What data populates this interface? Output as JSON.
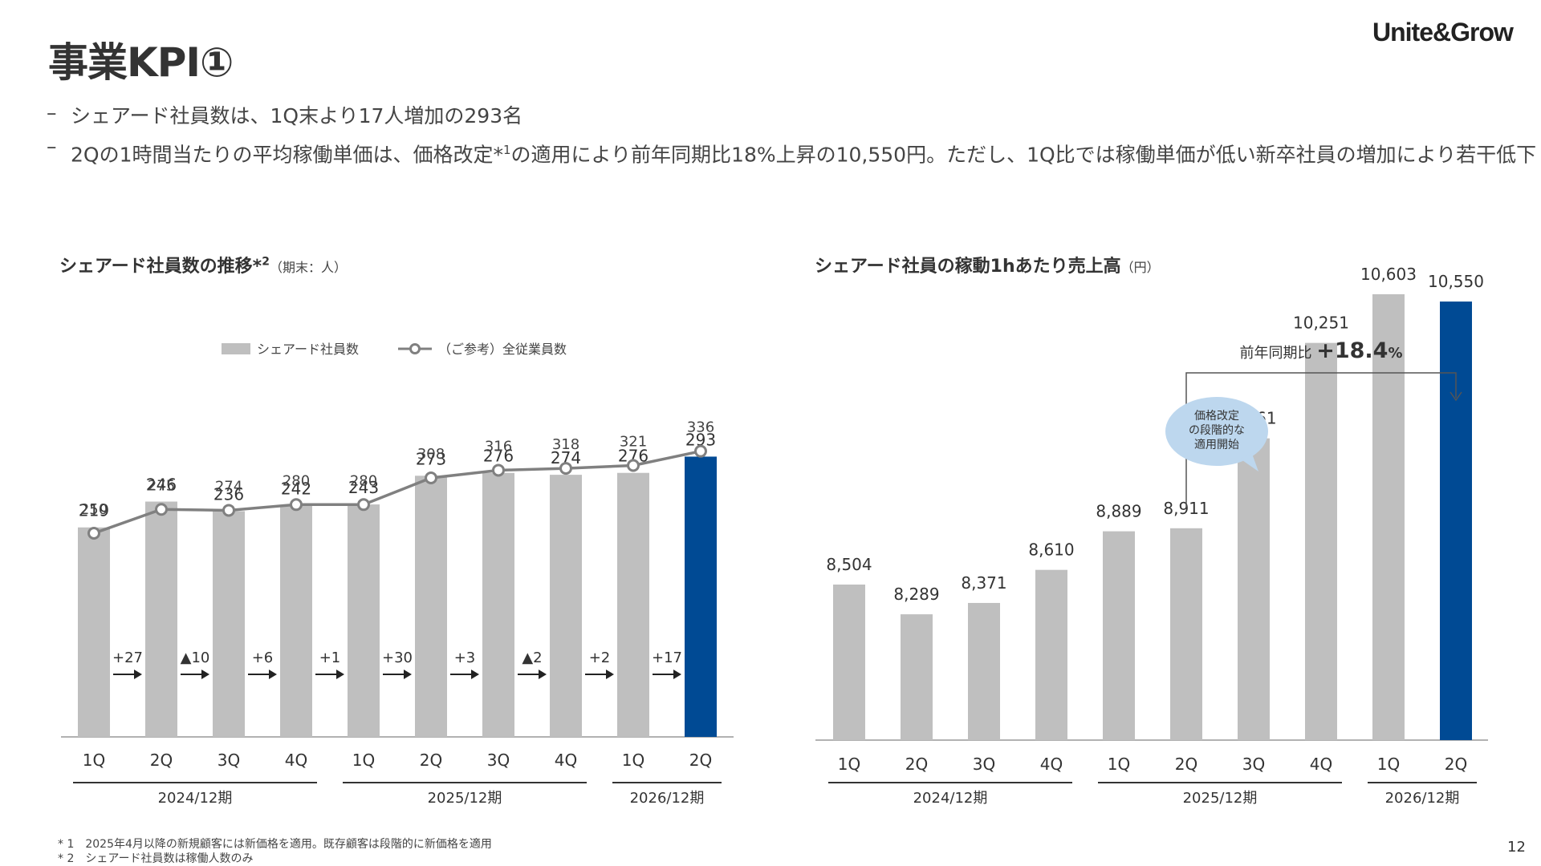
{
  "title": "事業KPI①",
  "logo": "Unite&Grow",
  "bullets": [
    {
      "dash": "–",
      "text_a": "シェアード社員数は、1Q末より17人増加の293名",
      "sup": "",
      "text_b": ""
    },
    {
      "dash": "–",
      "text_a": "2Qの1時間当たりの平均稼働単価は、価格改定*",
      "sup": "1",
      "text_b": "の適用により前年同期比18%上昇の10,550円。ただし、1Q比では稼働単価が低い新卒社員の増加により若干低下"
    }
  ],
  "chart_left": {
    "title": "シェアード社員数の推移*",
    "title_sup": "2",
    "title_sub": "（期末：人）"
  },
  "chart_right": {
    "title": "シェアード社員の稼動1hあたり売上高",
    "title_sub": "（円）"
  },
  "footnotes": [
    "* 1　2025年4月以降の新規顧客には新価格を適用。既存顧客は段階的に新価格を適用",
    "* 2　シェアード社員数は稼働人数のみ"
  ],
  "page_number": "12",
  "colors": {
    "bar_gray": "#BFBFBF",
    "bar_highlight": "#004A94",
    "line_gray": "#808080",
    "bubble": "#BDD7EE"
  },
  "chart_data": [
    {
      "type": "bar",
      "categories": [
        "1Q",
        "2Q",
        "3Q",
        "4Q",
        "1Q",
        "2Q",
        "3Q",
        "4Q",
        "1Q",
        "2Q"
      ],
      "period_groups": [
        {
          "label": "2024/12期",
          "start": 0,
          "end": 3
        },
        {
          "label": "2025/12期",
          "start": 4,
          "end": 7
        },
        {
          "label": "2026/12期",
          "start": 8,
          "end": 9
        }
      ],
      "series": [
        {
          "name": "シェアード社員数",
          "kind": "bar",
          "values": [
            219,
            246,
            236,
            242,
            243,
            273,
            276,
            274,
            276,
            293
          ],
          "labels": [
            "219",
            "246",
            "236",
            "242",
            "243",
            "273",
            "276",
            "274",
            "276",
            "293"
          ]
        },
        {
          "name": "（ご参考）全従業員数",
          "kind": "line",
          "values": [
            250,
            275,
            274,
            280,
            280,
            308,
            316,
            318,
            321,
            336
          ],
          "labels": [
            "250",
            "275",
            "274",
            "280",
            "280",
            "308",
            "316",
            "318",
            "321",
            "336"
          ]
        }
      ],
      "changes": [
        "+27",
        "▲10",
        "+6",
        "+1",
        "+30",
        "+3",
        "▲2",
        "+2",
        "+17"
      ],
      "highlight_index": 9
    },
    {
      "type": "bar",
      "categories": [
        "1Q",
        "2Q",
        "3Q",
        "4Q",
        "1Q",
        "2Q",
        "3Q",
        "4Q",
        "1Q",
        "2Q"
      ],
      "period_groups": [
        {
          "label": "2024/12期",
          "start": 0,
          "end": 3
        },
        {
          "label": "2025/12期",
          "start": 4,
          "end": 7
        },
        {
          "label": "2026/12期",
          "start": 8,
          "end": 9
        }
      ],
      "values": [
        8504,
        8289,
        8371,
        8610,
        8889,
        8911,
        9561,
        10251,
        10603,
        10550
      ],
      "labels": [
        "8,504",
        "8,289",
        "8,371",
        "8,610",
        "8,889",
        "8,911",
        "9,561",
        "10,251",
        "10,603",
        "10,550"
      ],
      "highlight_index": 9,
      "yoy_label": "前年同期比 ",
      "yoy_value": "+18.4",
      "yoy_unit": "%",
      "bubble_lines": [
        "価格改定",
        "の段階的な",
        "適用開始"
      ]
    }
  ]
}
